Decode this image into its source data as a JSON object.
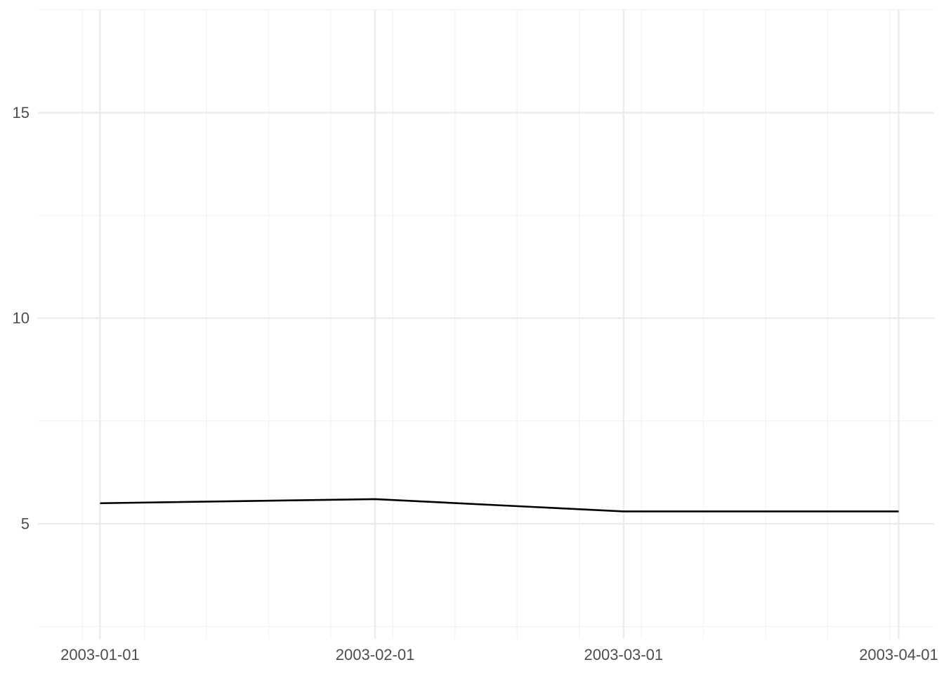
{
  "chart_data": {
    "type": "line",
    "title": "",
    "xlabel": "",
    "ylabel": "",
    "x_axis_type": "date",
    "x": [
      "2003-01-01",
      "2003-02-01",
      "2003-03-01",
      "2003-04-01"
    ],
    "series": [
      {
        "values": [
          5.5,
          5.6,
          5.3,
          5.3
        ],
        "color": "#000000"
      }
    ],
    "xlim": [
      "2002-12-25",
      "2003-04-05"
    ],
    "ylim": [
      2.2,
      17.5
    ],
    "x_ticks": [
      "2003-01-01",
      "2003-02-01",
      "2003-03-01",
      "2003-04-01"
    ],
    "x_tick_labels": [
      "2003-01-01",
      "2003-02-01",
      "2003-03-01",
      "2003-04-01"
    ],
    "y_ticks": [
      5,
      10,
      15
    ],
    "y_tick_labels": [
      "5",
      "10",
      "15"
    ],
    "y_minor_ticks": [
      2.5,
      7.5,
      12.5,
      17.5
    ],
    "x_minor_gridlines": "weekly",
    "grid": true,
    "legend": "none",
    "colors": {
      "background": "#ffffff",
      "grid_major": "#ebebeb",
      "grid_minor": "#f2f2f2",
      "tick_label": "#4d4d4d",
      "line": "#000000"
    }
  }
}
